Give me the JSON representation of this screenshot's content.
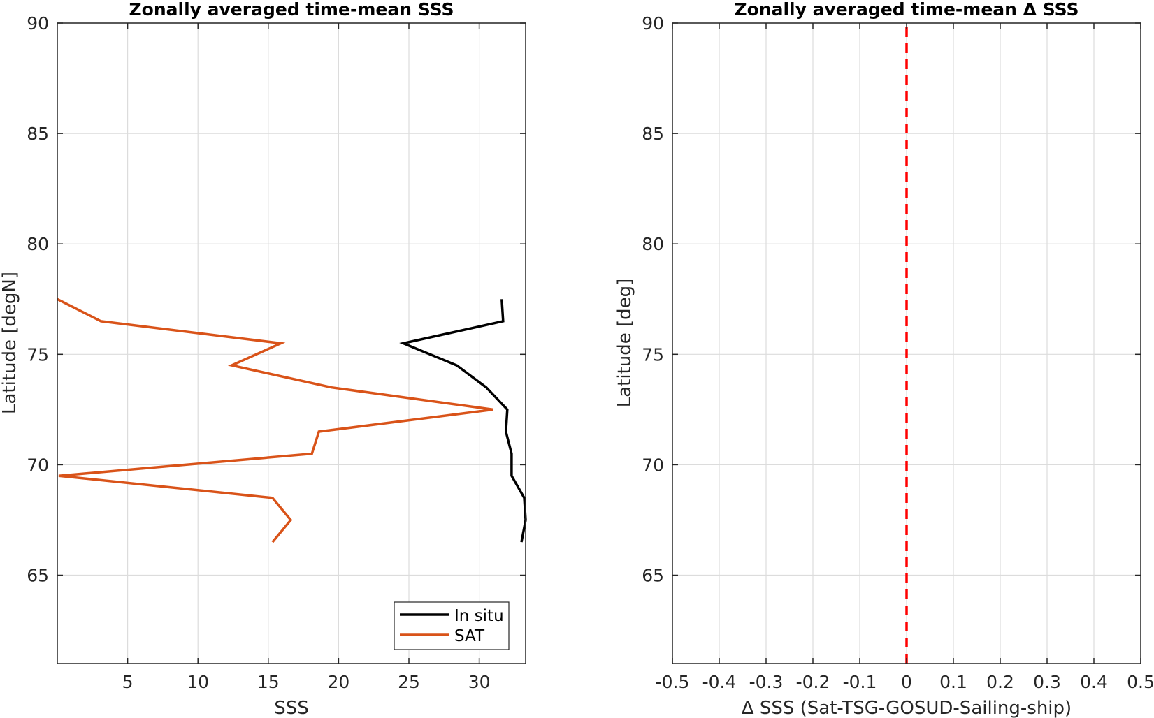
{
  "chart_data": [
    {
      "type": "line",
      "title": "Zonally averaged time-mean SSS",
      "xlabel": "SSS",
      "ylabel": "Latitude [degN]",
      "xlim": [
        0,
        33.3
      ],
      "ylim": [
        61,
        90
      ],
      "xticks": [
        5,
        10,
        15,
        20,
        25,
        30
      ],
      "yticks": [
        65,
        70,
        75,
        80,
        85,
        90
      ],
      "grid": true,
      "legend_position": "bottom-right",
      "series": [
        {
          "name": "In situ",
          "color": "#000000",
          "points": [
            [
              31.6,
              77.5
            ],
            [
              31.7,
              76.5
            ],
            [
              24.6,
              75.5
            ],
            [
              28.4,
              74.5
            ],
            [
              30.5,
              73.5
            ],
            [
              32.0,
              72.5
            ],
            [
              31.9,
              71.5
            ],
            [
              32.3,
              70.5
            ],
            [
              32.3,
              69.5
            ],
            [
              33.2,
              68.5
            ],
            [
              33.3,
              67.5
            ],
            [
              33.0,
              66.5
            ]
          ]
        },
        {
          "name": "SAT",
          "color": "#d95319",
          "points": [
            [
              0,
              77.5
            ],
            [
              3.1,
              76.5
            ],
            [
              15.9,
              75.5
            ],
            [
              12.4,
              74.5
            ],
            [
              19.5,
              73.5
            ],
            [
              31.0,
              72.5
            ],
            [
              18.6,
              71.5
            ],
            [
              18.1,
              70.5
            ],
            [
              0.1,
              69.5
            ],
            [
              15.3,
              68.5
            ],
            [
              16.6,
              67.5
            ],
            [
              15.3,
              66.5
            ]
          ]
        }
      ]
    },
    {
      "type": "line",
      "title": "Zonally averaged time-mean Δ SSS",
      "xlabel": "Δ SSS (Sat-TSG-GOSUD-Sailing-ship)",
      "ylabel": "Latitude [deg]",
      "xlim": [
        -0.5,
        0.5
      ],
      "ylim": [
        61,
        90
      ],
      "xticks": [
        -0.5,
        -0.4,
        -0.3,
        -0.2,
        -0.1,
        0,
        0.1,
        0.2,
        0.3,
        0.4,
        0.5
      ],
      "yticks": [
        65,
        70,
        75,
        80,
        85,
        90
      ],
      "grid": true,
      "reference_line": {
        "x": 0,
        "color": "#ff0000",
        "style": "dashed"
      },
      "series": []
    }
  ]
}
